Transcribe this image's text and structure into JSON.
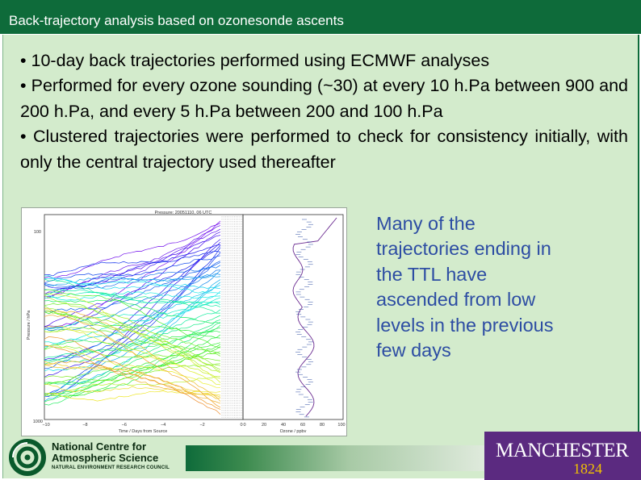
{
  "slide": {
    "title": "Back-trajectory analysis based on ozonesonde ascents",
    "bullets": [
      "• 10-day back trajectories performed using ECMWF analyses",
      "• Performed for every ozone sounding (~30) at every 10 h.Pa between 900 and 200 h.Pa, and every 5 h.Pa between 200 and 100 h.Pa",
      "• Clustered trajectories were performed to check for consistency initially, with only the central trajectory used thereafter"
    ],
    "side_note_lines": [
      "Many of the",
      "trajectories ending in",
      "the TTL have",
      "ascended from low",
      "levels in the previous",
      "few days"
    ]
  },
  "figure": {
    "title": "Pressure: 20051110, 06 UTC",
    "ylabel": "Pressure / hPa",
    "xlabel_left": "Time / Days from Source",
    "xlabel_right": "Ozone / ppbv",
    "y_ticks": [
      "100",
      "1000"
    ],
    "x_ticks_left": [
      "−10",
      "−8",
      "−6",
      "−4",
      "−2",
      "0"
    ],
    "x_ticks_right": [
      "0",
      "20",
      "40",
      "60",
      "80",
      "100"
    ]
  },
  "logos": {
    "ncas_name": "National Centre for Atmospheric Science",
    "ncas_sub": "NATURAL ENVIRONMENT RESEARCH COUNCIL",
    "manchester_name": "MANCHESTER",
    "manchester_year": "1824"
  },
  "colors": {
    "title_bar": "#0e6b3a",
    "panel": "#d3ebcc",
    "side_note_text": "#2d4da3",
    "manchester_purple": "#5b2a80",
    "manchester_gold": "#f2c200"
  }
}
